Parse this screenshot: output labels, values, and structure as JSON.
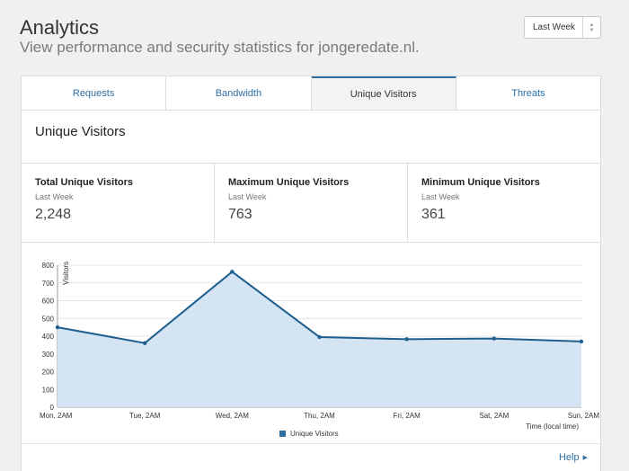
{
  "header": {
    "title": "Analytics",
    "subtitle": "View performance and security statistics for jongeredate.nl."
  },
  "period_select": {
    "value": "Last Week"
  },
  "tabs": [
    {
      "label": "Requests",
      "active": false
    },
    {
      "label": "Bandwidth",
      "active": false
    },
    {
      "label": "Unique Visitors",
      "active": true
    },
    {
      "label": "Threats",
      "active": false
    }
  ],
  "section": {
    "title": "Unique Visitors"
  },
  "stats": [
    {
      "label": "Total Unique Visitors",
      "period": "Last Week",
      "value": "2,248"
    },
    {
      "label": "Maximum Unique Visitors",
      "period": "Last Week",
      "value": "763"
    },
    {
      "label": "Minimum Unique Visitors",
      "period": "Last Week",
      "value": "361"
    }
  ],
  "chart_data": {
    "type": "area",
    "categories": [
      "Mon, 2AM",
      "Tue, 2AM",
      "Wed, 2AM",
      "Thu, 2AM",
      "Fri, 2AM",
      "Sat, 2AM",
      "Sun, 2AM"
    ],
    "series": [
      {
        "name": "Unique Visitors",
        "values": [
          450,
          361,
          763,
          395,
          383,
          387,
          370
        ]
      }
    ],
    "xlabel": "Time (local time)",
    "ylabel": "Visitors",
    "ylim": [
      0,
      800
    ],
    "yticks": [
      0,
      100,
      200,
      300,
      400,
      500,
      600,
      700,
      800
    ],
    "grid": true,
    "legend": "bottom",
    "line_color": "#1f5f8f",
    "fill_color": "#d5e4f3"
  },
  "footer": {
    "help_label": "Help"
  }
}
